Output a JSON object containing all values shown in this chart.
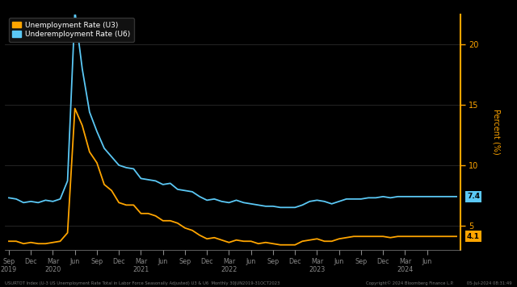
{
  "background_color": "#000000",
  "u3_color": "#FFA500",
  "u6_color": "#5BC8F5",
  "ylabel": "Percent (%)",
  "ylabel_color": "#FFA500",
  "yticks": [
    5,
    10,
    15,
    20
  ],
  "ylim": [
    3.0,
    22.5
  ],
  "legend_bg": "#111111",
  "legend_label_u3": "Unemployment Rate (U3)",
  "legend_label_u6": "Underemployment Rate (U6)",
  "u3_end_label": "4.1",
  "u6_end_label": "7.4",
  "u3_end_color": "#FFA500",
  "u6_end_color": "#5BC8F5",
  "footer_left": "USURTOT Index (U-3 US Unemployment Rate Total in Labor Force Seasonally Adjusted) U3 & U6  Monthly 30JUN2019-31OCT2023",
  "footer_right": "Copyright© 2024 Bloomberg Finance L.P.          05-Jul-2024 08:31:49",
  "u3_data": [
    3.7,
    3.7,
    3.5,
    3.6,
    3.5,
    3.5,
    3.6,
    3.7,
    4.4,
    14.7,
    13.3,
    11.1,
    10.2,
    8.4,
    7.9,
    6.9,
    6.7,
    6.7,
    6.0,
    6.0,
    5.8,
    5.4,
    5.4,
    5.2,
    4.8,
    4.6,
    4.2,
    3.9,
    4.0,
    3.8,
    3.6,
    3.8,
    3.7,
    3.7,
    3.5,
    3.6,
    3.5,
    3.4,
    3.4,
    3.4,
    3.7,
    3.8,
    3.9,
    3.7,
    3.7,
    3.9,
    4.0,
    4.1,
    4.1,
    4.1,
    4.1,
    4.1,
    4.0,
    4.1,
    4.1,
    4.1,
    4.1,
    4.1,
    4.1,
    4.1,
    4.1,
    4.1
  ],
  "u6_data": [
    7.3,
    7.2,
    6.9,
    7.0,
    6.9,
    7.1,
    7.0,
    7.2,
    8.7,
    22.8,
    18.0,
    14.4,
    12.8,
    11.4,
    10.7,
    10.0,
    9.8,
    9.7,
    8.9,
    8.8,
    8.7,
    8.4,
    8.5,
    8.0,
    7.9,
    7.8,
    7.4,
    7.1,
    7.2,
    7.0,
    6.9,
    7.1,
    6.9,
    6.8,
    6.7,
    6.6,
    6.6,
    6.5,
    6.5,
    6.5,
    6.7,
    7.0,
    7.1,
    7.0,
    6.8,
    7.0,
    7.2,
    7.2,
    7.2,
    7.3,
    7.3,
    7.4,
    7.3,
    7.4,
    7.4,
    7.4,
    7.4,
    7.4,
    7.4,
    7.4,
    7.4,
    7.4
  ],
  "x_tick_positions": [
    0,
    3,
    6,
    9,
    12,
    15,
    18,
    21,
    24,
    27,
    30,
    33,
    36,
    39,
    42,
    45,
    48,
    51,
    54,
    57
  ],
  "x_tick_labels": [
    "Sep\n2019",
    "Dec\n ",
    "Mar\n2020",
    "Jun\n ",
    "Sep\n ",
    "Dec\n ",
    "Mar\n2021",
    "Jun\n ",
    "Sep\n ",
    "Dec\n ",
    "Mar\n2022",
    "Jun\n ",
    "Sep\n ",
    "Dec\n ",
    "Mar\n2023",
    "Jun\n ",
    "Sep\n ",
    "Dec\n ",
    "Mar\n2024",
    "Jun\n "
  ]
}
